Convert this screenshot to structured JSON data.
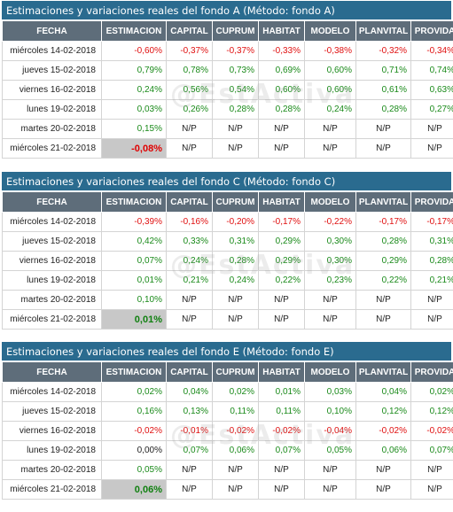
{
  "columns": [
    "FECHA",
    "ESTIMACION",
    "CAPITAL",
    "CUPRUM",
    "HABITAT",
    "MODELO",
    "PLANVITAL",
    "PROVIDA"
  ],
  "watermark": "@EstActiva",
  "colors": {
    "title_bg": "#2a6b8f",
    "header_bg": "#5e6d7a",
    "positive": "#1a8a1a",
    "negative": "#e01010",
    "highlight": "#c8c8c8"
  },
  "sections": [
    {
      "title": "Estimaciones y variaciones reales del fondo A (Método: fondo A)",
      "rows": [
        [
          "miércoles 14-02-2018",
          "-0,60%",
          "-0,37%",
          "-0,37%",
          "-0,33%",
          "-0,38%",
          "-0,32%",
          "-0,34%"
        ],
        [
          "jueves 15-02-2018",
          "0,79%",
          "0,78%",
          "0,73%",
          "0,69%",
          "0,60%",
          "0,71%",
          "0,74%"
        ],
        [
          "viernes 16-02-2018",
          "0,24%",
          "0,56%",
          "0,54%",
          "0,60%",
          "0,60%",
          "0,61%",
          "0,63%"
        ],
        [
          "lunes 19-02-2018",
          "0,03%",
          "0,26%",
          "0,28%",
          "0,28%",
          "0,24%",
          "0,28%",
          "0,27%"
        ],
        [
          "martes 20-02-2018",
          "0,15%",
          "N/P",
          "N/P",
          "N/P",
          "N/P",
          "N/P",
          "N/P"
        ],
        [
          "miércoles 21-02-2018",
          "-0,08%",
          "N/P",
          "N/P",
          "N/P",
          "N/P",
          "N/P",
          "N/P"
        ]
      ]
    },
    {
      "title": "Estimaciones y variaciones reales del fondo C (Método: fondo C)",
      "rows": [
        [
          "miércoles 14-02-2018",
          "-0,39%",
          "-0,16%",
          "-0,20%",
          "-0,17%",
          "-0,22%",
          "-0,17%",
          "-0,17%"
        ],
        [
          "jueves 15-02-2018",
          "0,42%",
          "0,33%",
          "0,31%",
          "0,29%",
          "0,30%",
          "0,28%",
          "0,31%"
        ],
        [
          "viernes 16-02-2018",
          "0,07%",
          "0,24%",
          "0,28%",
          "0,29%",
          "0,30%",
          "0,29%",
          "0,28%"
        ],
        [
          "lunes 19-02-2018",
          "0,01%",
          "0,21%",
          "0,24%",
          "0,22%",
          "0,23%",
          "0,22%",
          "0,21%"
        ],
        [
          "martes 20-02-2018",
          "0,10%",
          "N/P",
          "N/P",
          "N/P",
          "N/P",
          "N/P",
          "N/P"
        ],
        [
          "miércoles 21-02-2018",
          "0,01%",
          "N/P",
          "N/P",
          "N/P",
          "N/P",
          "N/P",
          "N/P"
        ]
      ]
    },
    {
      "title": "Estimaciones y variaciones reales del fondo E (Método: fondo E)",
      "rows": [
        [
          "miércoles 14-02-2018",
          "0,02%",
          "0,04%",
          "0,02%",
          "0,01%",
          "0,03%",
          "0,04%",
          "0,02%"
        ],
        [
          "jueves 15-02-2018",
          "0,16%",
          "0,13%",
          "0,11%",
          "0,11%",
          "0,10%",
          "0,12%",
          "0,12%"
        ],
        [
          "viernes 16-02-2018",
          "-0,02%",
          "-0,01%",
          "-0,02%",
          "-0,02%",
          "-0,04%",
          "-0,02%",
          "-0,02%"
        ],
        [
          "lunes 19-02-2018",
          "0,00%",
          "0,07%",
          "0,06%",
          "0,07%",
          "0,05%",
          "0,06%",
          "0,07%"
        ],
        [
          "martes 20-02-2018",
          "0,05%",
          "N/P",
          "N/P",
          "N/P",
          "N/P",
          "N/P",
          "N/P"
        ],
        [
          "miércoles 21-02-2018",
          "0,06%",
          "N/P",
          "N/P",
          "N/P",
          "N/P",
          "N/P",
          "N/P"
        ]
      ]
    }
  ]
}
